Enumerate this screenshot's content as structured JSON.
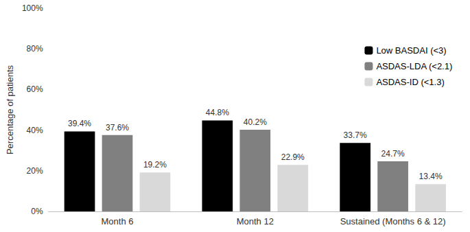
{
  "chart_data": {
    "type": "bar",
    "y_label": "Percentage of patients",
    "categories": [
      "Month 6",
      "Month 12",
      "Sustained (Months 6 & 12)"
    ],
    "series": [
      {
        "name": "Low BASDAI (<3)",
        "color": "#000000",
        "values": [
          39.4,
          44.8,
          33.7
        ],
        "value_labels": [
          "39.4%",
          "44.8%",
          "33.7%"
        ]
      },
      {
        "name": "ASDAS-LDA (<2.1)",
        "color": "#808080",
        "values": [
          37.6,
          40.2,
          24.7
        ],
        "value_labels": [
          "37.6%",
          "40.2%",
          "24.7%"
        ]
      },
      {
        "name": "ASDAS-ID (<1.3)",
        "color": "#d9d9d9",
        "values": [
          19.2,
          22.9,
          13.4
        ],
        "value_labels": [
          "19.2%",
          "22.9%",
          "13.4%"
        ]
      }
    ],
    "ylim": [
      0,
      100
    ],
    "yticks": [
      {
        "value": 0,
        "label": "0%"
      },
      {
        "value": 20,
        "label": "20%"
      },
      {
        "value": 40,
        "label": "40%"
      },
      {
        "value": 60,
        "label": "60%"
      },
      {
        "value": 80,
        "label": "80%"
      },
      {
        "value": 100,
        "label": "100%"
      }
    ],
    "grid": false,
    "legend": "upper right",
    "data_labels": true
  }
}
